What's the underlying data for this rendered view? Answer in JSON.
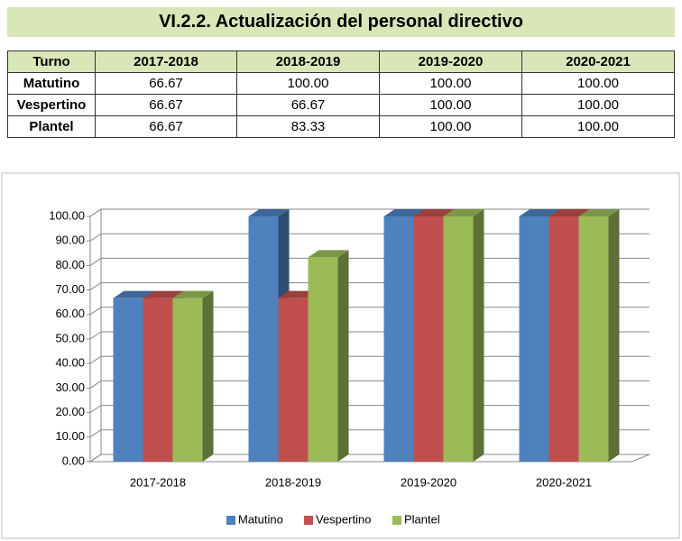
{
  "title": "VI.2.2. Actualización del personal directivo",
  "table": {
    "header": [
      "Turno",
      "2017-2018",
      "2018-2019",
      "2019-2020",
      "2020-2021"
    ],
    "rows": [
      [
        "Matutino",
        "66.67",
        "100.00",
        "100.00",
        "100.00"
      ],
      [
        "Vespertino",
        "66.67",
        "66.67",
        "100.00",
        "100.00"
      ],
      [
        "Plantel",
        "66.67",
        "83.33",
        "100.00",
        "100.00"
      ]
    ]
  },
  "chart_data": {
    "type": "bar3d",
    "categories": [
      "2017-2018",
      "2018-2019",
      "2019-2020",
      "2020-2021"
    ],
    "series": [
      {
        "name": "Matutino",
        "color": "#4f81bd",
        "values": [
          66.67,
          100,
          100,
          100
        ]
      },
      {
        "name": "Vespertino",
        "color": "#c0504d",
        "values": [
          66.67,
          66.67,
          100,
          100
        ]
      },
      {
        "name": "Plantel",
        "color": "#9bbb59",
        "values": [
          66.67,
          83.33,
          100,
          100
        ]
      }
    ],
    "ylim": [
      0,
      100
    ],
    "yticks": [
      {
        "value": 0,
        "label": "0.00"
      },
      {
        "value": 10,
        "label": "10.00"
      },
      {
        "value": 20,
        "label": "20.00"
      },
      {
        "value": 30,
        "label": "30.00"
      },
      {
        "value": 40,
        "label": "40.00"
      },
      {
        "value": 50,
        "label": "50.00"
      },
      {
        "value": 60,
        "label": "60.00"
      },
      {
        "value": 70,
        "label": "70.00"
      },
      {
        "value": 80,
        "label": "80.00"
      },
      {
        "value": 90,
        "label": "90.00"
      },
      {
        "value": 100,
        "label": "100.00"
      }
    ],
    "grid": true,
    "legend": "bottom"
  }
}
